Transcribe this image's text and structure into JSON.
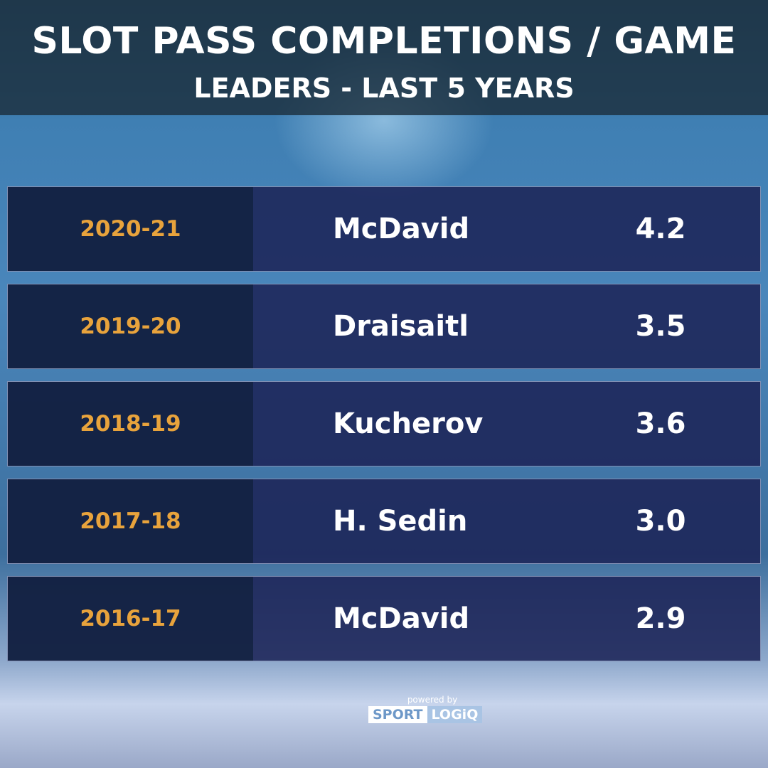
{
  "header": {
    "title": "SLOT PASS COMPLETIONS / GAME",
    "subtitle": "LEADERS - LAST 5 YEARS"
  },
  "table": {
    "rows": [
      [
        "2020-21",
        "McDavid",
        "4.2"
      ],
      [
        "2019-20",
        "Draisaitl",
        "3.5"
      ],
      [
        "2018-19",
        "Kucherov",
        "3.6"
      ],
      [
        "2017-18",
        "H. Sedin",
        "3.0"
      ],
      [
        "2016-17",
        "McDavid",
        "2.9"
      ]
    ]
  },
  "footer": {
    "powered_by": "powered by",
    "brand_left": "SPORT",
    "brand_right": "LOGiQ"
  }
}
